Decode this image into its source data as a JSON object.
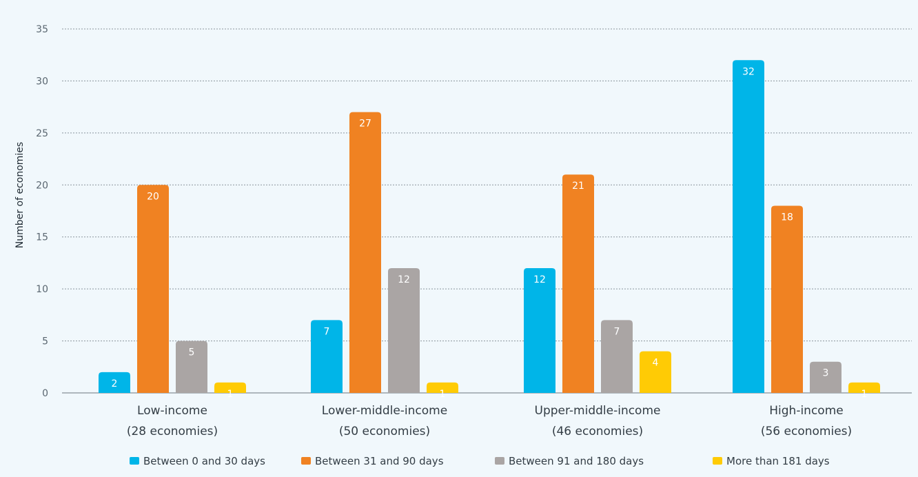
{
  "chart_data": {
    "type": "bar",
    "title": "",
    "xlabel": "",
    "ylabel": "Number of economies",
    "ylim": [
      0,
      35
    ],
    "yticks": [
      0,
      5,
      10,
      15,
      20,
      25,
      30,
      35
    ],
    "grid": true,
    "legend_position": "bottom",
    "categories": [
      [
        "Low-income",
        "(28 economies)"
      ],
      [
        "Lower-middle-income",
        "(50 economies)"
      ],
      [
        "Upper-middle-income",
        "(46 economies)"
      ],
      [
        "High-income",
        "(56 economies)"
      ]
    ],
    "series": [
      {
        "name": "Between 0 and 30 days",
        "color": "#00b5e8",
        "label_color": "#ffffff",
        "values": [
          2,
          7,
          12,
          32
        ]
      },
      {
        "name": "Between 31 and 90 days",
        "color": "#f08222",
        "label_color": "#ffffff",
        "values": [
          20,
          27,
          21,
          18
        ]
      },
      {
        "name": "Between 91 and 180 days",
        "color": "#aaa5a4",
        "label_color": "#ffffff",
        "values": [
          5,
          12,
          7,
          3
        ]
      },
      {
        "name": "More than 181 days",
        "color": "#ffcb05",
        "label_color": "#ffffff",
        "values": [
          1,
          1,
          4,
          1
        ]
      }
    ]
  }
}
